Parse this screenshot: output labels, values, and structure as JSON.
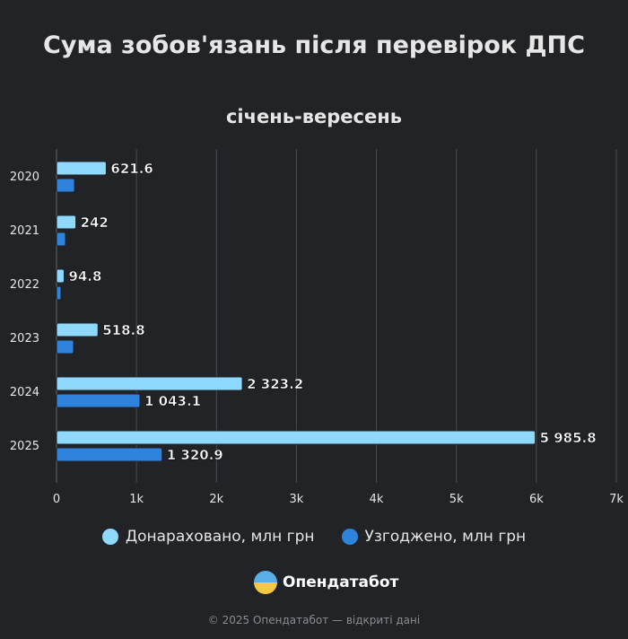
{
  "chart_data": {
    "type": "bar",
    "orientation": "horizontal",
    "title": "Сума зобов'язань після перевірок ДПС",
    "subtitle": "січень-вересень",
    "categories": [
      "2020",
      "2021",
      "2022",
      "2023",
      "2024",
      "2025"
    ],
    "series": [
      {
        "name": "Донараховано, млн грн",
        "color": "#8fd9ff",
        "values": [
          621.6,
          242,
          94.8,
          518.8,
          2323.2,
          5985.8
        ],
        "labels": [
          "621.6",
          "242",
          "94.8",
          "518.8",
          "2 323.2",
          "5 985.8"
        ]
      },
      {
        "name": "Узгоджено, млн грн",
        "color": "#2e83dc",
        "values": [
          225,
          112,
          56,
          213,
          1043.1,
          1320.9
        ],
        "labels": [
          "",
          "",
          "",
          "",
          "1 043.1",
          "1 320.9"
        ]
      }
    ],
    "xlim": [
      0,
      7000
    ],
    "xticks": [
      0,
      1000,
      2000,
      3000,
      4000,
      5000,
      6000,
      7000
    ],
    "xtick_labels": [
      "0",
      "1k",
      "2k",
      "3k",
      "4k",
      "5k",
      "6k",
      "7k"
    ],
    "grid": true,
    "legend": "bottom"
  },
  "branding": {
    "logo_text": "Опендатабот",
    "footer": "© 2025 Опендатабот — відкриті дані"
  }
}
